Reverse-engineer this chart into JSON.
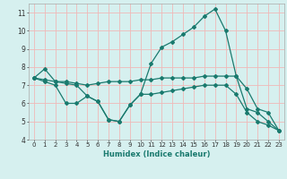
{
  "line1_x": [
    0,
    1,
    2,
    3,
    4,
    5,
    6,
    7,
    8,
    9,
    10,
    11,
    12,
    13,
    14,
    15,
    16,
    17,
    18,
    19,
    20,
    21,
    22,
    23
  ],
  "line1_y": [
    7.4,
    7.9,
    7.2,
    7.1,
    7.0,
    6.4,
    6.1,
    5.1,
    5.0,
    5.9,
    6.5,
    8.2,
    9.1,
    9.4,
    9.8,
    10.2,
    10.8,
    11.2,
    10.0,
    7.5,
    6.8,
    5.7,
    5.5,
    4.5
  ],
  "line2_x": [
    0,
    1,
    2,
    3,
    4,
    5,
    6,
    7,
    8,
    9,
    10,
    11,
    12,
    13,
    14,
    15,
    16,
    17,
    18,
    19,
    20,
    21,
    22,
    23
  ],
  "line2_y": [
    7.4,
    7.3,
    7.2,
    7.2,
    7.1,
    7.0,
    7.1,
    7.2,
    7.2,
    7.2,
    7.3,
    7.3,
    7.4,
    7.4,
    7.4,
    7.4,
    7.5,
    7.5,
    7.5,
    7.5,
    5.7,
    5.5,
    5.0,
    4.5
  ],
  "line3_x": [
    0,
    1,
    2,
    3,
    4,
    5,
    6,
    7,
    8,
    9,
    10,
    11,
    12,
    13,
    14,
    15,
    16,
    17,
    18,
    19,
    20,
    21,
    22,
    23
  ],
  "line3_y": [
    7.4,
    7.2,
    7.0,
    6.0,
    6.0,
    6.4,
    6.1,
    5.1,
    5.0,
    5.9,
    6.5,
    6.5,
    6.6,
    6.7,
    6.8,
    6.9,
    7.0,
    7.0,
    7.0,
    6.5,
    5.5,
    5.0,
    4.8,
    4.5
  ],
  "line_color": "#1a7a6e",
  "bg_color": "#d6f0ef",
  "grid_color": "#f0b8b8",
  "xlabel": "Humidex (Indice chaleur)",
  "ylim": [
    4,
    11.5
  ],
  "xlim": [
    -0.5,
    23.5
  ],
  "yticks": [
    4,
    5,
    6,
    7,
    8,
    9,
    10,
    11
  ],
  "xticks": [
    0,
    1,
    2,
    3,
    4,
    5,
    6,
    7,
    8,
    9,
    10,
    11,
    12,
    13,
    14,
    15,
    16,
    17,
    18,
    19,
    20,
    21,
    22,
    23
  ],
  "xlabel_color": "#1a7a6e",
  "tick_color": "#333333",
  "xlabel_fontsize": 6.0,
  "tick_fontsize_x": 5.0,
  "tick_fontsize_y": 5.5
}
